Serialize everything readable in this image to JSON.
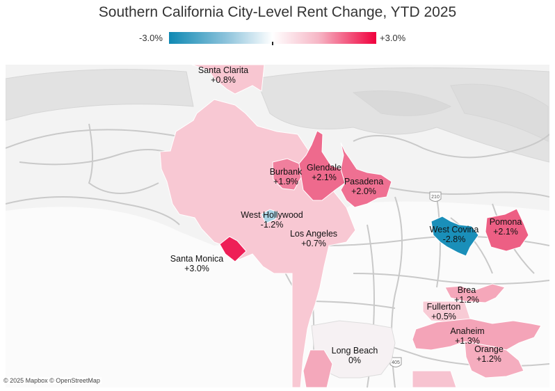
{
  "title": "Southern California City-Level Rent Change, YTD 2025",
  "legend": {
    "min_label": "-3.0%",
    "max_label": "+3.0%",
    "low_color": "#0f89b3",
    "high_color": "#f0003d"
  },
  "highway_labels": {
    "i210": "210",
    "i405": "405"
  },
  "attribution": "© 2025 Mapbox © OpenStreetMap",
  "cities": [
    {
      "name": "Santa Clarita",
      "change": "+0.8%"
    },
    {
      "name": "Glendale",
      "change": "+2.1%"
    },
    {
      "name": "Burbank",
      "change": "+1.9%"
    },
    {
      "name": "Pasadena",
      "change": "+2.0%"
    },
    {
      "name": "West Hollywood",
      "change": "-1.2%"
    },
    {
      "name": "Los Angeles",
      "change": "+0.7%"
    },
    {
      "name": "Santa Monica",
      "change": "+3.0%"
    },
    {
      "name": "West Covina",
      "change": "-2.8%"
    },
    {
      "name": "Pomona",
      "change": "+2.1%"
    },
    {
      "name": "Brea",
      "change": "+1.2%"
    },
    {
      "name": "Fullerton",
      "change": "+0.5%"
    },
    {
      "name": "Anaheim",
      "change": "+1.3%"
    },
    {
      "name": "Long Beach",
      "change": "0%"
    },
    {
      "name": "Orange",
      "change": "+1.2%"
    }
  ]
}
